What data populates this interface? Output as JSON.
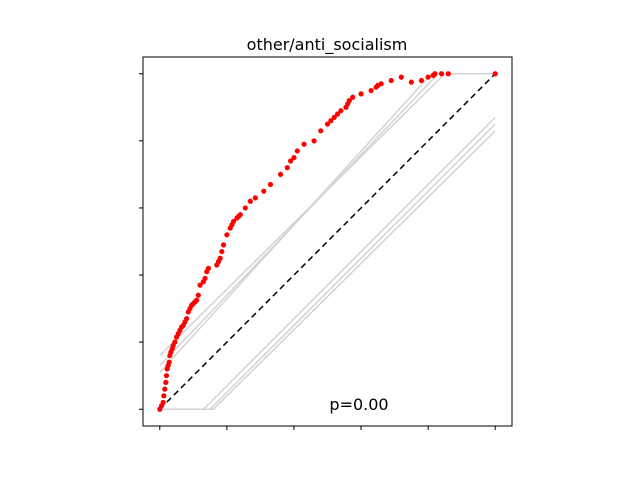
{
  "chart_data": {
    "type": "scatter",
    "title": "other/anti_socialism",
    "annotation": "p=0.00",
    "xlim": [
      -0.05,
      1.05
    ],
    "ylim": [
      -0.05,
      1.05
    ],
    "x_ticks": [
      0,
      0.2,
      0.4,
      0.6,
      0.8,
      1.0
    ],
    "y_ticks": [
      0,
      0.2,
      0.4,
      0.6,
      0.8,
      1.0
    ],
    "tick_labels_shown": false,
    "grid": false,
    "colors": {
      "points": "#ff0000",
      "reference": "#000000",
      "envelope": "#d3d3d3"
    },
    "reference_line": {
      "style": "dashed",
      "x": [
        0,
        1
      ],
      "y": [
        0,
        1
      ]
    },
    "envelope_lines": [
      {
        "x": [
          0,
          0.85,
          1.0
        ],
        "y": [
          0.16,
          1.0,
          1.0
        ]
      },
      {
        "x": [
          0,
          0.83,
          1.0
        ],
        "y": [
          0.13,
          1.0,
          1.0
        ]
      },
      {
        "x": [
          0,
          0.81,
          1.0
        ],
        "y": [
          0.11,
          1.0,
          1.0
        ]
      },
      {
        "x": [
          0,
          0.13,
          1.0
        ],
        "y": [
          0,
          0,
          0.87
        ]
      },
      {
        "x": [
          0,
          0.15,
          1.0
        ],
        "y": [
          0,
          0,
          0.85
        ]
      },
      {
        "x": [
          0,
          0.16,
          1.0
        ],
        "y": [
          0,
          0,
          0.83
        ]
      }
    ],
    "series": [
      {
        "x": [
          0.0,
          0.005,
          0.01,
          0.012,
          0.015,
          0.018,
          0.02,
          0.022,
          0.025,
          0.028,
          0.03,
          0.033,
          0.037,
          0.04,
          0.045,
          0.05,
          0.055,
          0.06,
          0.065,
          0.07,
          0.075,
          0.08,
          0.085,
          0.09,
          0.095,
          0.1,
          0.105,
          0.11,
          0.115,
          0.12,
          0.13,
          0.135,
          0.14,
          0.145,
          0.17,
          0.175,
          0.18,
          0.185,
          0.19,
          0.2,
          0.21,
          0.215,
          0.22,
          0.23,
          0.235,
          0.24,
          0.255,
          0.27,
          0.285,
          0.31,
          0.33,
          0.36,
          0.38,
          0.39,
          0.4,
          0.41,
          0.43,
          0.46,
          0.48,
          0.5,
          0.51,
          0.52,
          0.53,
          0.54,
          0.555,
          0.56,
          0.565,
          0.575,
          0.6,
          0.63,
          0.645,
          0.65,
          0.66,
          0.69,
          0.72,
          0.75,
          0.78,
          0.8,
          0.815,
          0.82,
          0.84,
          0.86,
          1.0
        ],
        "y": [
          0.0,
          0.01,
          0.02,
          0.04,
          0.06,
          0.08,
          0.1,
          0.12,
          0.13,
          0.14,
          0.16,
          0.17,
          0.18,
          0.19,
          0.2,
          0.215,
          0.225,
          0.235,
          0.245,
          0.25,
          0.26,
          0.27,
          0.29,
          0.3,
          0.31,
          0.315,
          0.32,
          0.325,
          0.34,
          0.37,
          0.38,
          0.39,
          0.41,
          0.42,
          0.43,
          0.44,
          0.45,
          0.47,
          0.49,
          0.52,
          0.54,
          0.55,
          0.56,
          0.57,
          0.575,
          0.58,
          0.6,
          0.62,
          0.63,
          0.65,
          0.67,
          0.7,
          0.72,
          0.74,
          0.75,
          0.77,
          0.79,
          0.8,
          0.83,
          0.85,
          0.86,
          0.87,
          0.88,
          0.89,
          0.9,
          0.91,
          0.92,
          0.93,
          0.94,
          0.95,
          0.96,
          0.965,
          0.97,
          0.98,
          0.99,
          0.975,
          0.98,
          0.99,
          0.995,
          1.0,
          1.0,
          1.0,
          1.0
        ]
      }
    ]
  }
}
